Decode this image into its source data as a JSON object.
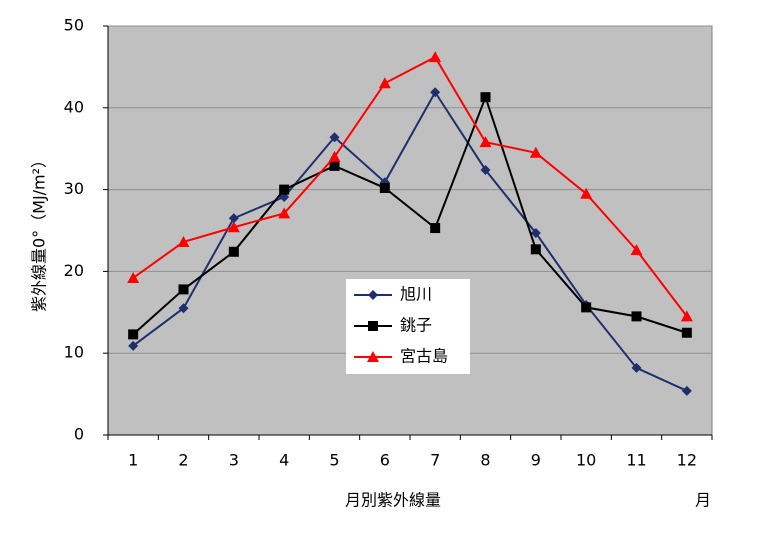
{
  "chart_data": {
    "type": "line",
    "ylabel": "紫外線量0°（MJ/m²）",
    "xlabel": "月別紫外線量",
    "xlabel_unit": "月",
    "categories": [
      "1",
      "2",
      "3",
      "4",
      "5",
      "6",
      "7",
      "8",
      "9",
      "10",
      "11",
      "12"
    ],
    "ylim": [
      0,
      50
    ],
    "yticks": [
      0,
      10,
      20,
      30,
      40,
      50
    ],
    "grid": true,
    "series": [
      {
        "name": "旭川",
        "color": "#1f2f6e",
        "marker": "diamond",
        "values": [
          10.9,
          15.5,
          26.5,
          29.1,
          36.4,
          30.9,
          41.9,
          32.4,
          24.7,
          15.9,
          8.2,
          5.4
        ]
      },
      {
        "name": "銚子",
        "color": "#000000",
        "marker": "square",
        "values": [
          12.3,
          17.8,
          22.4,
          30.0,
          32.9,
          30.2,
          25.3,
          41.3,
          22.7,
          15.6,
          14.5,
          12.5
        ]
      },
      {
        "name": "宮古島",
        "color": "#ff0000",
        "marker": "triangle",
        "values": [
          19.2,
          23.6,
          25.4,
          27.1,
          34.0,
          43.0,
          46.2,
          35.8,
          34.5,
          29.5,
          22.6,
          14.5
        ]
      }
    ]
  }
}
